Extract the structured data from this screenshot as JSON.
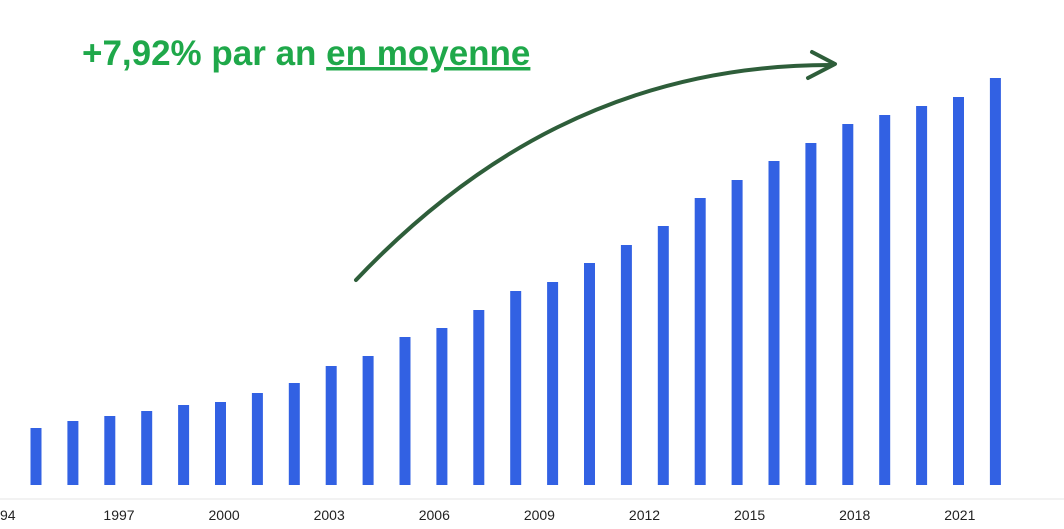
{
  "chart_data": {
    "type": "bar",
    "title": "+7,92% par an ",
    "title_emphasis": "en moyenne",
    "x_axis_labels": [
      "94",
      "1997",
      "2000",
      "2003",
      "2006",
      "2009",
      "2012",
      "2015",
      "2018",
      "2021"
    ],
    "values": [
      57,
      64,
      69,
      74,
      80,
      83,
      92,
      102,
      119,
      129,
      148,
      157,
      175,
      194,
      203,
      222,
      240,
      259,
      287,
      305,
      324,
      342,
      361,
      370,
      379,
      388,
      407
    ],
    "color": "#3261e3",
    "title_color": "#1fa84a",
    "arrow_color": "#2e5e3a"
  }
}
